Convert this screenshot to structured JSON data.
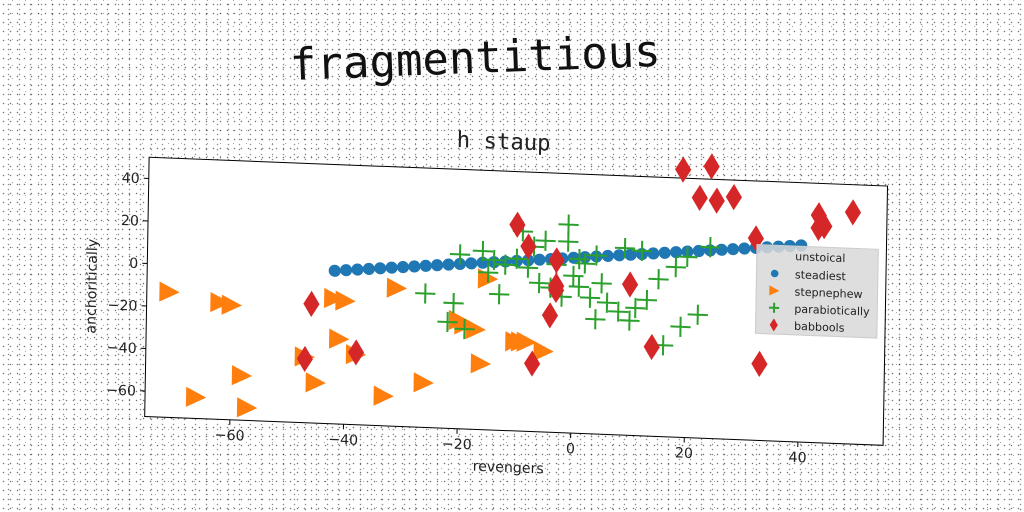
{
  "page_title": "fragmentitious",
  "chart_data": {
    "type": "scatter",
    "title": "h staup",
    "xlabel": "revengers",
    "ylabel": "anchoritically",
    "xlim": [
      -75,
      55
    ],
    "ylim": [
      -72,
      50
    ],
    "xticks": [
      -60,
      -40,
      -20,
      0,
      20,
      40
    ],
    "yticks": [
      -60,
      -40,
      -20,
      0,
      20,
      40
    ],
    "grid": false,
    "legend": {
      "title": "unstoical",
      "position": "right"
    },
    "series": [
      {
        "name": "steadiest",
        "marker": "circle",
        "color": "#1f77b4",
        "x": [
          -42,
          -40,
          -38,
          -36,
          -34,
          -32,
          -30,
          -28,
          -26,
          -24,
          -22,
          -20,
          -18,
          -16,
          -14,
          -12,
          -10,
          -8,
          -6,
          -4,
          -2,
          0,
          2,
          4,
          6,
          8,
          10,
          12,
          14,
          16,
          18,
          20,
          22,
          24,
          26,
          28,
          30,
          32,
          34,
          36,
          38,
          40
        ],
        "y": [
          0,
          0.5,
          1,
          1.5,
          2,
          2.5,
          3,
          3.5,
          4,
          4.5,
          5,
          5.5,
          6,
          6.5,
          7,
          7.5,
          8,
          8.5,
          9,
          9.5,
          10,
          10.5,
          11,
          11.5,
          12,
          12.5,
          13,
          13.5,
          14,
          14.5,
          15,
          15.5,
          16,
          16.5,
          17,
          17.5,
          18,
          18.5,
          19,
          19.5,
          20,
          20.5
        ]
      },
      {
        "name": "stepnephew",
        "marker": "triangle-right",
        "color": "#ff7f0e",
        "x": [
          -71,
          -62,
          -60,
          -66,
          -57,
          -58,
          -47,
          -45,
          -42,
          -40,
          -41,
          -38,
          -31,
          -33,
          -26,
          -20,
          -19,
          -17,
          -16,
          -15,
          -10,
          -9,
          -8,
          -5
        ],
        "y": [
          -13,
          -17,
          -18,
          -62,
          -66,
          -51,
          -41,
          -53,
          -13,
          -14,
          -32,
          -39,
          -7,
          -58,
          -51,
          -21,
          -23,
          -25,
          -41,
          -1,
          -30,
          -30,
          -30,
          -34
        ]
      },
      {
        "name": "parabiotically",
        "marker": "plus",
        "color": "#2ca02c",
        "x": [
          -26,
          -22,
          -21,
          -20,
          -19,
          -16,
          -15,
          -14,
          -13,
          -12,
          -10,
          -9,
          -8,
          -7,
          -6,
          -5,
          -4,
          -3,
          -2,
          -1,
          -1,
          0,
          1,
          1,
          2,
          3,
          4,
          4,
          5,
          6,
          8,
          9,
          10,
          11,
          12,
          13,
          15,
          16,
          18,
          19,
          20,
          22,
          24
        ],
        "y": [
          -9,
          -22,
          -13,
          10,
          -25,
          12,
          2,
          8,
          -8,
          6,
          9,
          22,
          5,
          15,
          -2,
          18,
          -4,
          7,
          -8,
          26,
          18,
          2,
          10,
          -3,
          8,
          -8,
          12,
          -18,
          -1,
          -10,
          -14,
          16,
          -18,
          -12,
          15,
          -8,
          2,
          -29,
          8,
          -20,
          13,
          -14,
          18
        ]
      },
      {
        "name": "babbools",
        "marker": "diamond",
        "color": "#d62728",
        "x": [
          -46,
          -47,
          -38,
          -10,
          -8,
          -7,
          -4,
          -3,
          -3,
          -3,
          10,
          14,
          19,
          22,
          24,
          25,
          28,
          32,
          33,
          43,
          43,
          44,
          49
        ],
        "y": [
          -16,
          -42,
          -38,
          25,
          15,
          -40,
          -17,
          -5,
          -3,
          9,
          -1,
          -30,
          54,
          41,
          56,
          40,
          42,
          23,
          -36,
          35,
          29,
          30,
          37
        ]
      }
    ]
  }
}
